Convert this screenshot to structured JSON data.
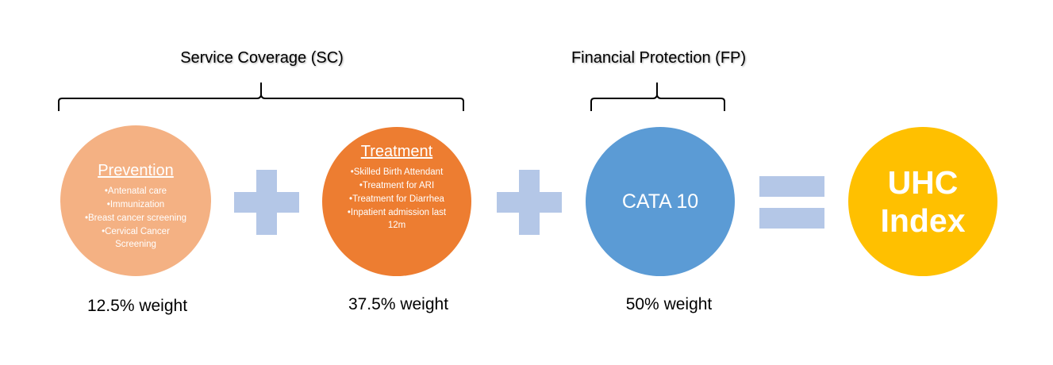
{
  "groups": {
    "service_coverage": "Service Coverage (SC)",
    "financial_protection": "Financial Protection (FP)"
  },
  "components": {
    "prevention": {
      "title": "Prevention",
      "items": [
        "Antenatal care",
        "Immunization",
        "Breast cancer screening",
        "Cervical Cancer Screening"
      ],
      "weight": "12.5% weight",
      "color": "#F4B183"
    },
    "treatment": {
      "title": "Treatment",
      "items": [
        "Skilled Birth Attendant",
        "Treatment for ARI",
        "Treatment for Diarrhea",
        "Inpatient admission last 12m"
      ],
      "weight": "37.5% weight",
      "color": "#ED7D31"
    },
    "cata": {
      "label": "CATA 10",
      "weight": "50% weight",
      "color": "#5B9BD5"
    },
    "uhc": {
      "line1": "UHC",
      "line2": "Index",
      "color": "#FFC000"
    }
  },
  "operator_color": "#B4C7E7"
}
